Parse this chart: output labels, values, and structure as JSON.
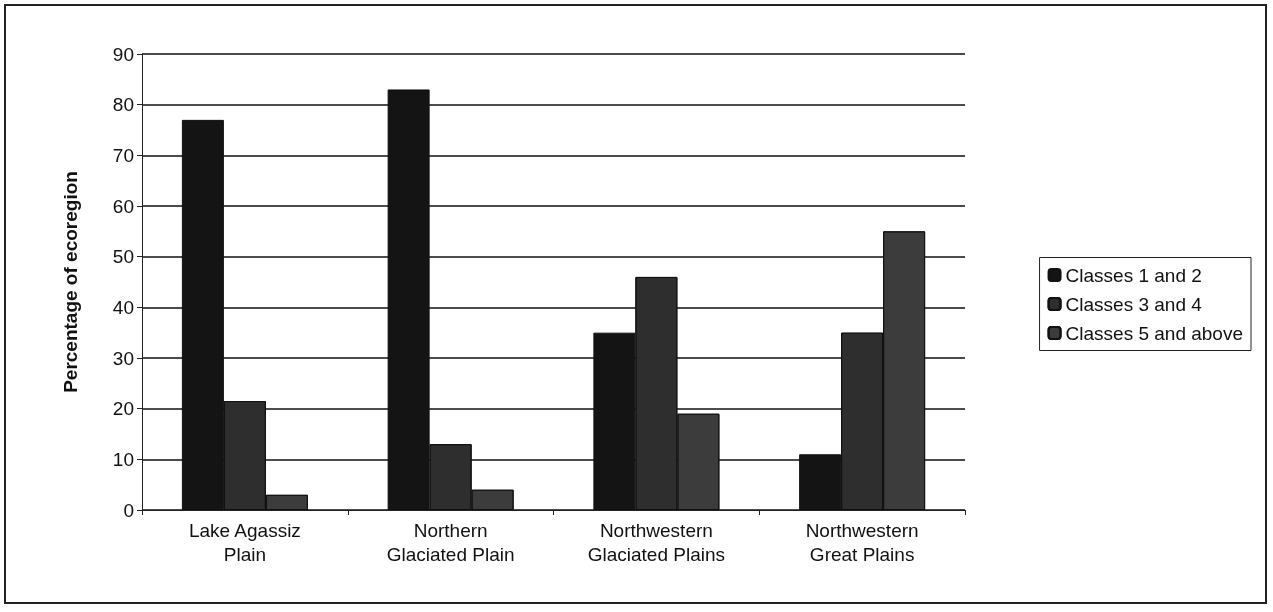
{
  "chart_data": {
    "type": "bar",
    "ylabel": "Percentage of ecoregion",
    "categories": [
      "Lake Agassiz\nPlain",
      "Northern\nGlaciated Plain",
      "Northwestern\nGlaciated Plains",
      "Northwestern\nGreat Plains"
    ],
    "series": [
      {
        "name": "Classes 1 and 2",
        "color": "#141414",
        "values": [
          77,
          83,
          35,
          11
        ]
      },
      {
        "name": "Classes 3 and 4",
        "color": "#2e2e2e",
        "values": [
          21.5,
          13,
          46,
          35
        ]
      },
      {
        "name": "Classes 5 and above",
        "color": "#3c3c3c",
        "values": [
          3,
          4,
          19,
          55
        ]
      }
    ],
    "ylim": [
      0,
      90
    ],
    "yticks": [
      0,
      10,
      20,
      30,
      40,
      50,
      60,
      70,
      80,
      90
    ],
    "grid": "y",
    "legend": "right"
  }
}
